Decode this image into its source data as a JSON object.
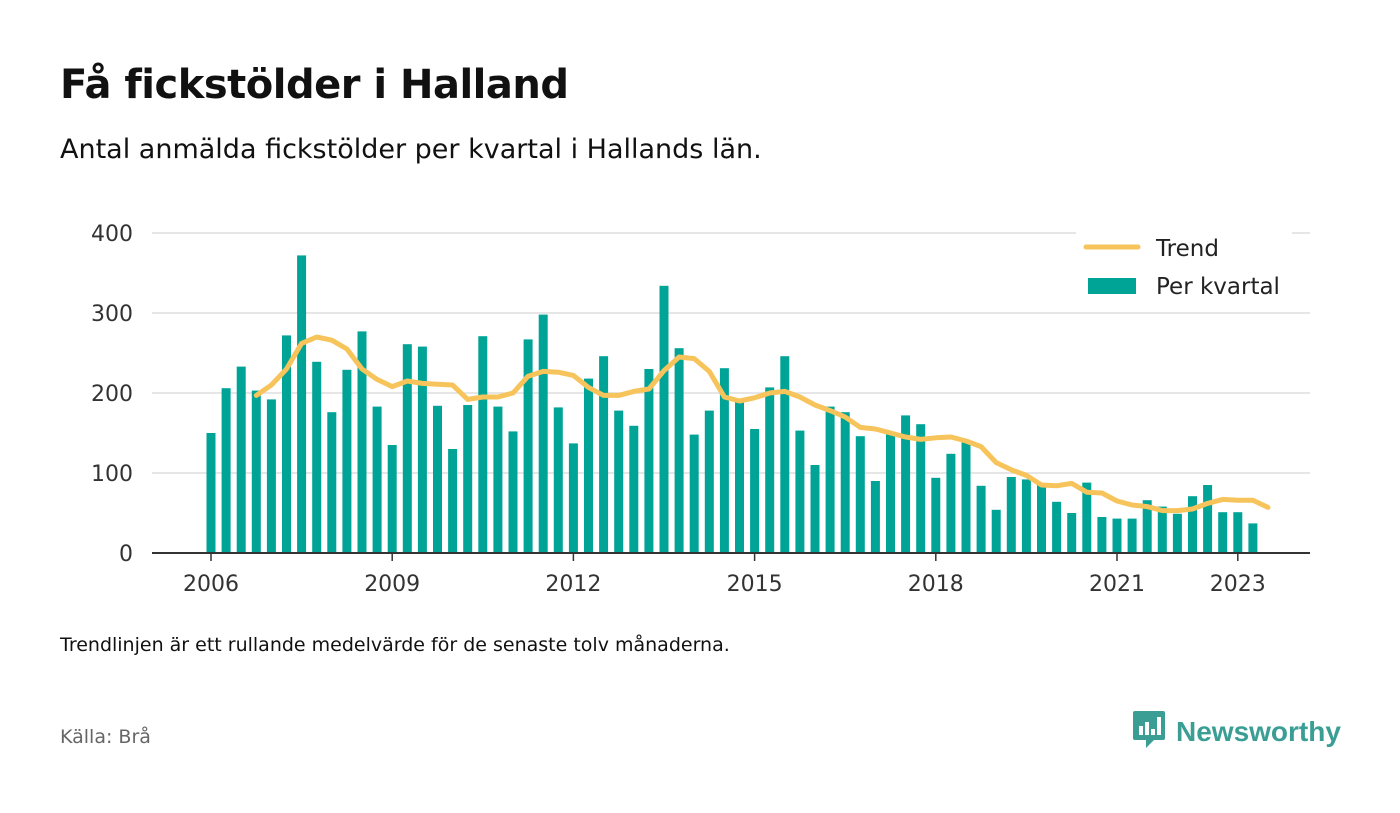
{
  "header": {
    "title": "Få fickstölder i Halland",
    "subtitle": "Antal anmälda fickstölder per kvartal i Hallands län."
  },
  "footer": {
    "note": "Trendlinjen är ett rullande medelvärde för de senaste tolv månaderna.",
    "source": "Källa: Brå",
    "brand": "Newsworthy",
    "brand_icon": "bar-chart-speech-icon",
    "brand_color": "#3a9e95"
  },
  "chart_data": {
    "type": "bar",
    "title": "Få fickstölder i Halland",
    "subtitle": "Antal anmälda fickstölder per kvartal i Hallands län.",
    "ylim": [
      0,
      400
    ],
    "yticks": [
      "0",
      "100",
      "200",
      "300",
      "400"
    ],
    "xticks": [
      {
        "label": "2006",
        "q": 0
      },
      {
        "label": "2009",
        "q": 12
      },
      {
        "label": "2012",
        "q": 24
      },
      {
        "label": "2015",
        "q": 36
      },
      {
        "label": "2018",
        "q": 48
      },
      {
        "label": "2021",
        "q": 60
      },
      {
        "label": "2023",
        "q": 68
      }
    ],
    "grid": true,
    "legend_position": "top-right",
    "legend": [
      {
        "label": "Trend",
        "type": "line"
      },
      {
        "label": "Per kvartal",
        "type": "bar"
      }
    ],
    "colors": {
      "bars": "#00a497",
      "trend": "#f7c35b",
      "grid": "#dddddd",
      "axis": "#333333"
    },
    "series": [
      {
        "name": "Per kvartal",
        "type": "bar",
        "values": [
          150,
          206,
          233,
          203,
          192,
          272,
          372,
          239,
          176,
          229,
          277,
          183,
          135,
          261,
          258,
          184,
          130,
          185,
          271,
          183,
          152,
          267,
          298,
          182,
          137,
          218,
          246,
          178,
          159,
          230,
          334,
          256,
          148,
          178,
          231,
          193,
          155,
          207,
          246,
          153,
          110,
          183,
          176,
          146,
          90,
          150,
          172,
          161,
          94,
          124,
          139,
          84,
          54,
          95,
          92,
          87,
          64,
          50,
          88,
          45,
          43,
          43,
          66,
          58,
          49,
          71,
          85,
          51,
          51,
          37
        ]
      },
      {
        "name": "Trend",
        "type": "line",
        "start_q": 3,
        "values": [
          197,
          210,
          230,
          262,
          270,
          266,
          255,
          230,
          217,
          208,
          215,
          212,
          211,
          210,
          192,
          195,
          195,
          200,
          221,
          227,
          226,
          222,
          207,
          197,
          197,
          202,
          205,
          228,
          245,
          243,
          227,
          195,
          190,
          194,
          200,
          202,
          195,
          185,
          178,
          170,
          157,
          155,
          150,
          145,
          142,
          144,
          145,
          140,
          133,
          113,
          104,
          97,
          85,
          84,
          87,
          76,
          75,
          65,
          60,
          58,
          53,
          53,
          55,
          62,
          67,
          66,
          66,
          57
        ]
      }
    ]
  }
}
